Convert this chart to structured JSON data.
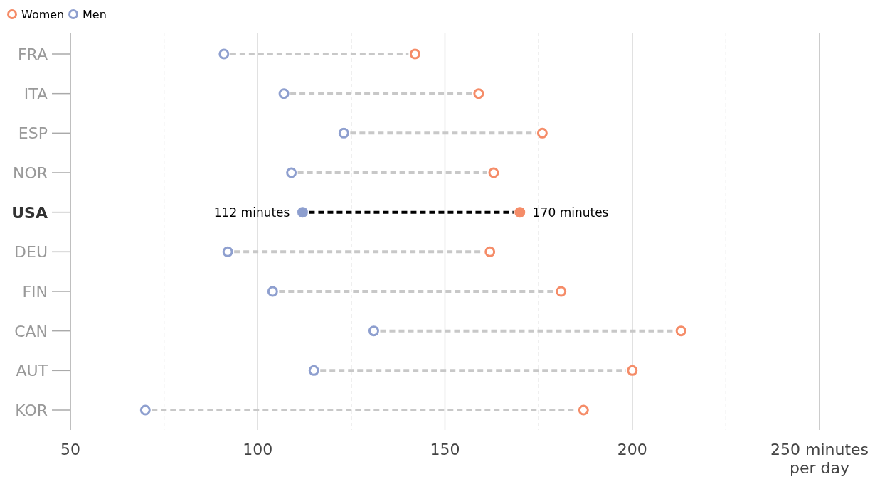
{
  "chart_data": {
    "type": "scatter",
    "orientation": "horizontal",
    "categories": [
      "FRA",
      "ITA",
      "ESP",
      "NOR",
      "USA",
      "DEU",
      "FIN",
      "CAN",
      "AUT",
      "KOR"
    ],
    "series": [
      {
        "name": "Women",
        "color": "#f58c68",
        "values": [
          142,
          159,
          176,
          163,
          170,
          162,
          181,
          213,
          200,
          187
        ],
        "value_labels": [
          null,
          null,
          null,
          null,
          "170 minutes",
          null,
          null,
          null,
          null,
          null
        ]
      },
      {
        "name": "Men",
        "color": "#8e9fcf",
        "values": [
          91,
          107,
          123,
          109,
          112,
          92,
          104,
          131,
          115,
          70
        ],
        "value_labels": [
          null,
          null,
          null,
          null,
          "112 minutes",
          null,
          null,
          null,
          null,
          null
        ]
      }
    ],
    "xlim": [
      50,
      250
    ],
    "xticks": [
      50,
      {
        "value": 75,
        "label": null
      },
      100,
      {
        "value": 125,
        "label": null
      },
      150,
      {
        "value": 175,
        "label": null
      },
      200,
      {
        "value": 225,
        "label": null
      },
      {
        "value": 250,
        "label": "250 minutes per day"
      }
    ],
    "grid": "x",
    "legend": "top left",
    "marker": "circle"
  }
}
